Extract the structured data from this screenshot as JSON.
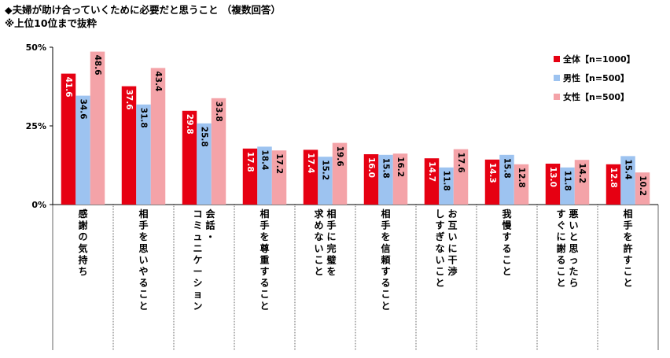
{
  "titles": {
    "line1": "◆夫婦が助け合っていくために必要だと思うこと （複数回答）",
    "line2": "※上位10位まで抜粋"
  },
  "chart_data": {
    "type": "bar",
    "ylim": [
      0,
      50
    ],
    "yticks": [
      "0%",
      "25%",
      "50%"
    ],
    "ytick_values": [
      0,
      25,
      50
    ],
    "grid": false,
    "legend_position": "top-right",
    "categories": [
      [
        "感",
        "謝",
        "の",
        "気",
        "持",
        "ち"
      ],
      [
        "相",
        "手",
        "を",
        "思",
        "い",
        "や",
        "る",
        "こ",
        "と"
      ],
      [
        "会",
        "話",
        "・",
        "コ",
        "ミ",
        "ュ",
        "ニ",
        "ケ",
        "ー",
        "シ",
        "ョ",
        "ン"
      ],
      [
        "相",
        "手",
        "を",
        "尊",
        "重",
        "す",
        "る",
        "こ",
        "と"
      ],
      [
        "相",
        "手",
        "に",
        "完",
        "璧",
        "を",
        "求",
        "め",
        "な",
        "い",
        "こ",
        "と"
      ],
      [
        "相",
        "手",
        "を",
        "信",
        "頼",
        "す",
        "る",
        "こ",
        "と"
      ],
      [
        "お",
        "互",
        "い",
        "に",
        "干",
        "渉",
        "し",
        "す",
        "ぎ",
        "な",
        "い",
        "こ",
        "と"
      ],
      [
        "我",
        "慢",
        "す",
        "る",
        "こ",
        "と"
      ],
      [
        "悪",
        "い",
        "と",
        "思",
        "っ",
        "た",
        "ら",
        "す",
        "ぐ",
        "に",
        "謝",
        "る",
        "こ",
        "と"
      ],
      [
        "相",
        "手",
        "を",
        "許",
        "す",
        "こ",
        "と"
      ]
    ],
    "category_column_lengths": [
      [
        6
      ],
      [
        9
      ],
      [
        3,
        9
      ],
      [
        9
      ],
      [
        6,
        6
      ],
      [
        9
      ],
      [
        6,
        7
      ],
      [
        6
      ],
      [
        7,
        7
      ],
      [
        7
      ]
    ],
    "series": [
      {
        "name": "全体【n=1000】",
        "color": "#e60012",
        "values": [
          41.6,
          37.6,
          29.8,
          17.8,
          17.4,
          16.0,
          14.7,
          14.3,
          13.0,
          12.8
        ],
        "labels": [
          "41.6",
          "37.6",
          "29.8",
          "17.8",
          "17.4",
          "16.0",
          "14.7",
          "14.3",
          "13.0",
          "12.8"
        ]
      },
      {
        "name": "男性【n=500】",
        "color": "#9dc3f0",
        "values": [
          34.6,
          31.8,
          25.8,
          18.4,
          15.2,
          15.8,
          11.8,
          15.8,
          11.8,
          15.4
        ],
        "labels": [
          "34.6",
          "31.8",
          "25.8",
          "18.4",
          "15.2",
          "15.8",
          "11.8",
          "15.8",
          "11.8",
          "15.4"
        ]
      },
      {
        "name": "女性【n=500】",
        "color": "#f4a3a8",
        "values": [
          48.6,
          43.4,
          33.8,
          17.2,
          19.6,
          16.2,
          17.6,
          12.8,
          14.2,
          10.2
        ],
        "labels": [
          "48.6",
          "43.4",
          "33.8",
          "17.2",
          "19.6",
          "16.2",
          "17.6",
          "12.8",
          "14.2",
          "10.2"
        ]
      }
    ]
  }
}
